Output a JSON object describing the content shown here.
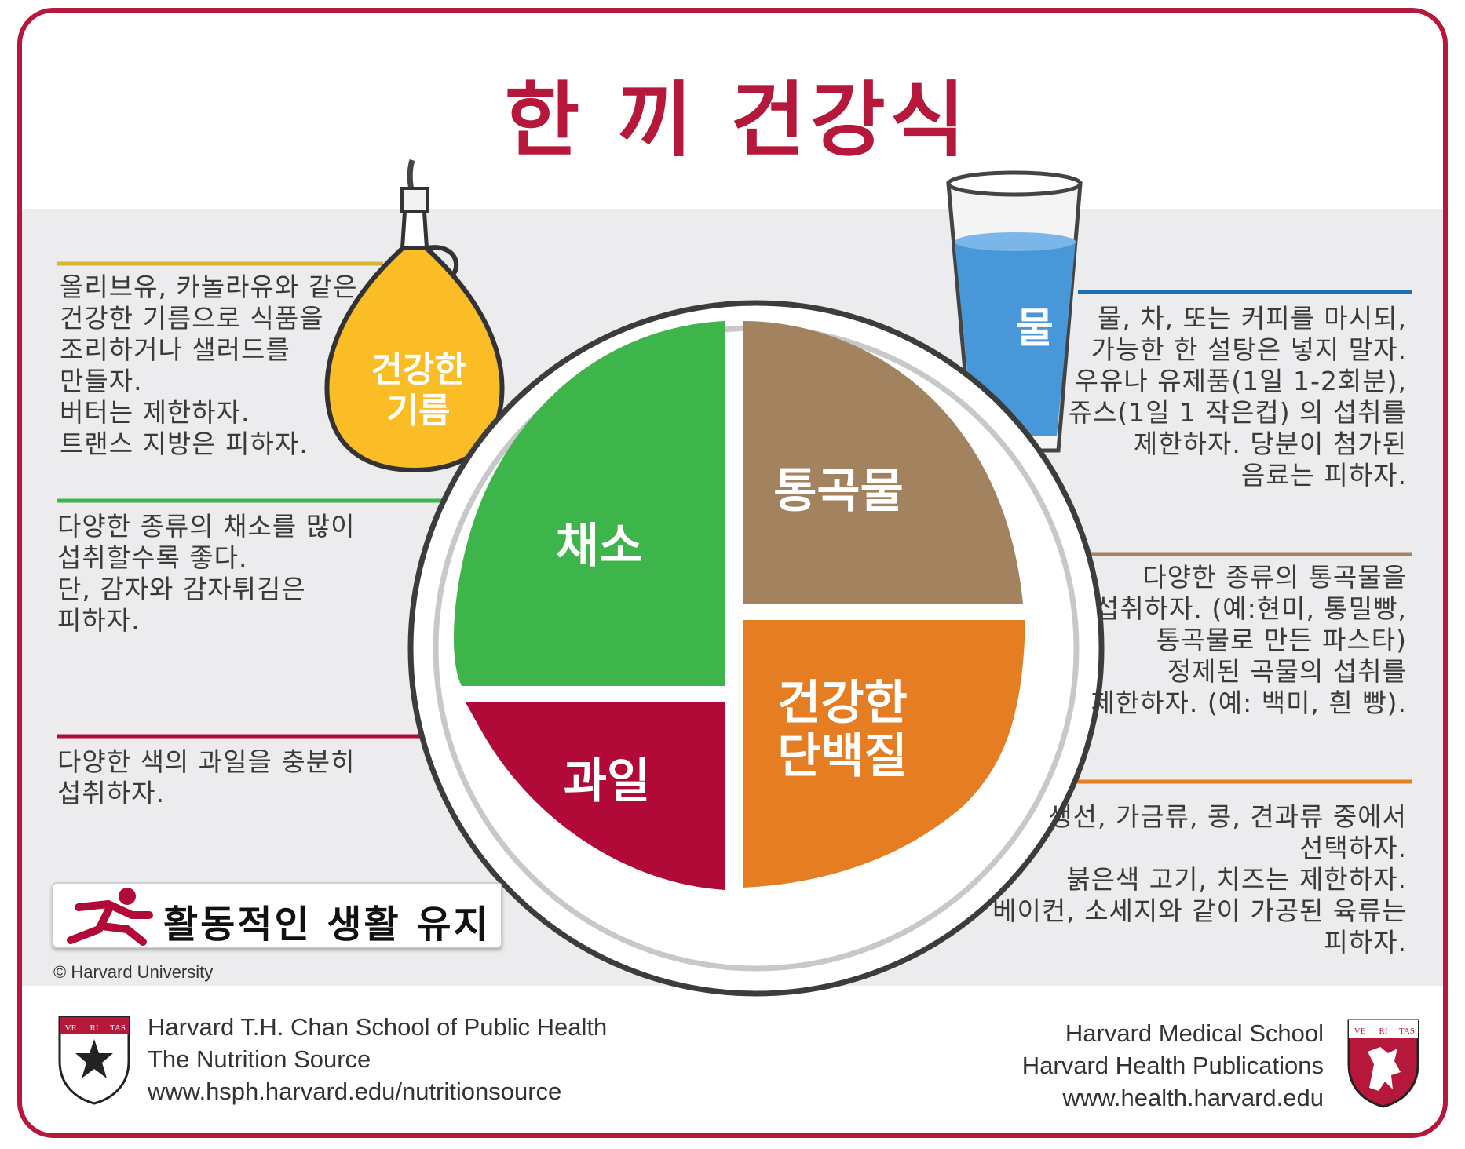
{
  "title": "한 끼 건강식",
  "plate": {
    "vegetables": "채소",
    "whole_grains": "통곡물",
    "fruits": "과일",
    "protein_line1": "건강한",
    "protein_line2": "단백질"
  },
  "oil": {
    "line1": "건강한",
    "line2": "기름"
  },
  "water": {
    "label": "물"
  },
  "notes": {
    "oil": "올리브유, 카놀라유와 같은\n건강한 기름으로 식품을\n조리하거나 샐러드를\n만들자.\n버터는 제한하자.\n트랜스 지방은 피하자.",
    "vegetables": "다양한 종류의 채소를 많이\n섭취할수록 좋다.\n단, 감자와 감자튀김은\n피하자.",
    "fruits": "다양한 색의 과일을 충분히\n섭취하자.",
    "water": "물, 차, 또는 커피를 마시되,\n가능한 한 설탕은 넣지 말자.\n우유나 유제품(1일 1-2회분),\n쥬스(1일 1 작은컵) 의 섭취를\n제한하자. 당분이 첨가된\n음료는 피하자.",
    "whole_grains": "다양한 종류의 통곡물을\n섭취하자. (예:현미, 통밀빵,\n통곡물로 만든 파스타)\n정제된 곡물의 섭취를\n제한하자. (예: 백미, 흰 빵).",
    "protein": "생선, 가금류, 콩, 견과류 중에서\n선택하자.\n붉은색 고기, 치즈는 제한하자.\n베이컨, 소세지와 같이 가공된 육류는\n피하자."
  },
  "active": "활동적인 생활 유지",
  "copyright": "© Harvard University",
  "footer_left": {
    "line1": "Harvard T.H. Chan School of Public Health",
    "line2": "The Nutrition Source",
    "line3": "www.hsph.harvard.edu/nutritionsource"
  },
  "footer_right": {
    "line1": "Harvard Medical School",
    "line2": "Harvard Health Publications",
    "line3": "www.health.harvard.edu"
  },
  "crest_text": {
    "a": "VE",
    "b": "RI",
    "c": "TAS"
  },
  "colors": {
    "brand": "#b5183a",
    "vegetables": "#3db54a",
    "whole_grains": "#a3825f",
    "fruits": "#b20a38",
    "protein": "#e57e22",
    "oil": "#fbbd26",
    "water": "#4897d8"
  }
}
